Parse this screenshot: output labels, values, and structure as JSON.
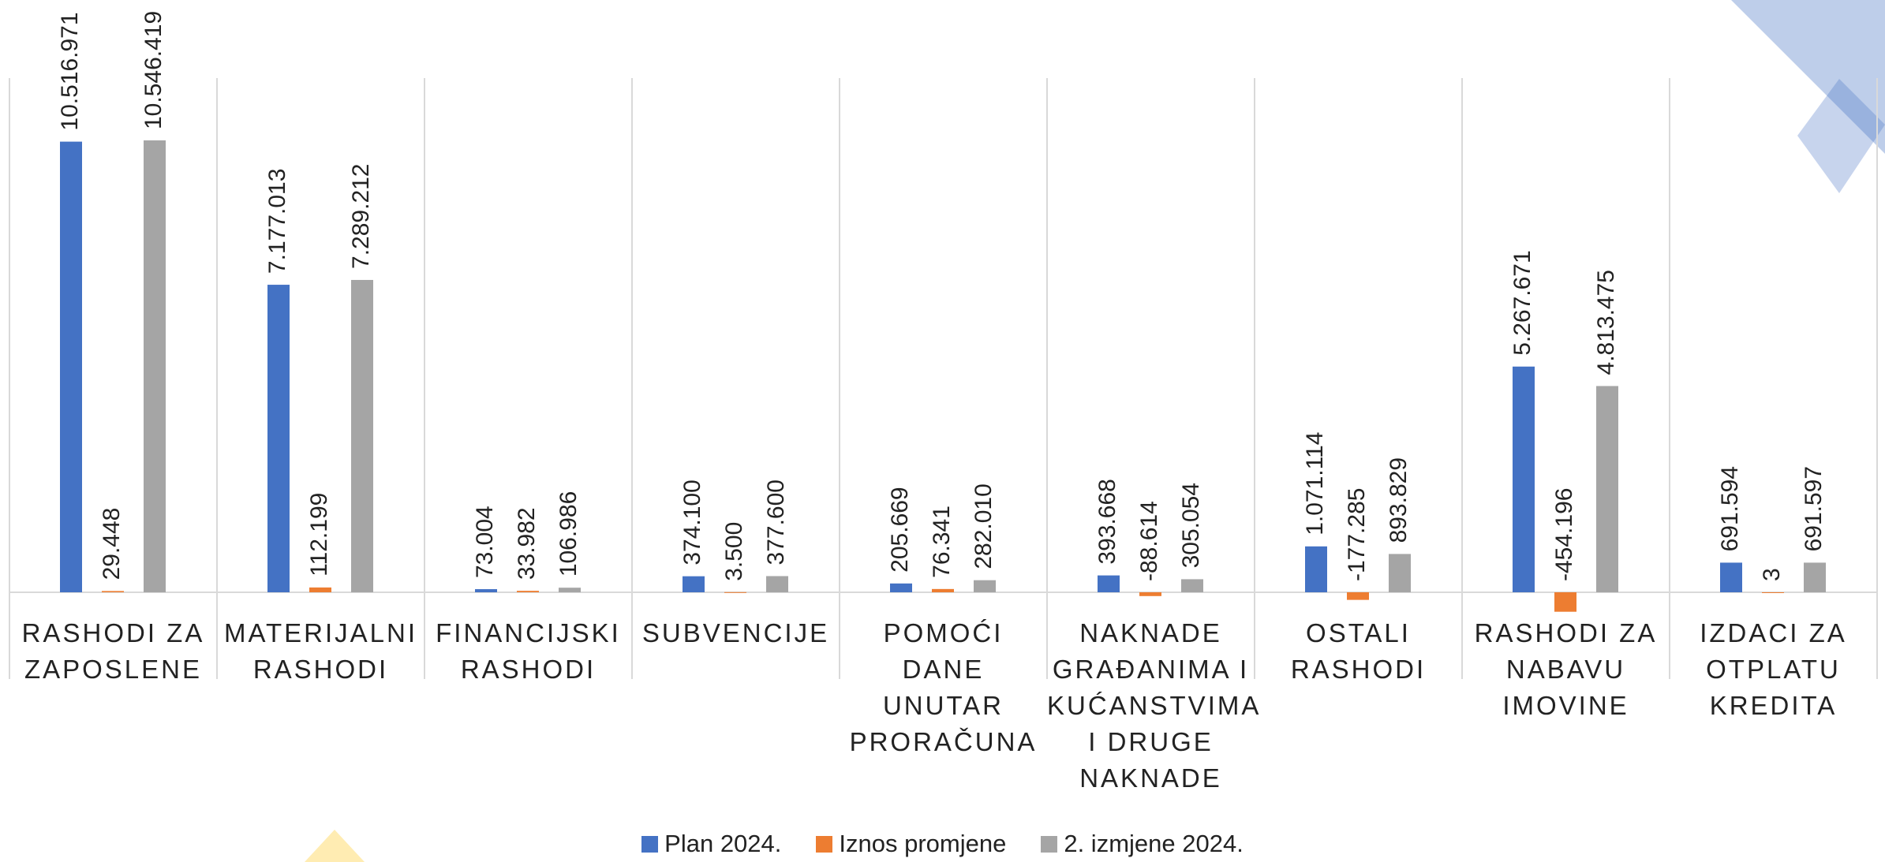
{
  "chart_data": {
    "type": "bar",
    "categories": [
      "RASHODI ZA ZAPOSLENE",
      "MATERIJALNI RASHODI",
      "FINANCIJSKI RASHODI",
      "SUBVENCIJE",
      "POMOĆI DANE UNUTAR PRORAČUNA",
      "NAKNADE GRAĐANIMA I KUĆANSTVIMA I DRUGE NAKNADE",
      "OSTALI RASHODI",
      "RASHODI ZA NABAVU IMOVINE",
      "IZDACI ZA OTPLATU KREDITA"
    ],
    "series": [
      {
        "name": "Plan 2024.",
        "color": "#4472c4",
        "values": [
          10516971,
          7177013,
          73004,
          374100,
          205669,
          393668,
          1071114,
          5267671,
          691594
        ],
        "value_labels": [
          "10.516.971",
          "7.177.013",
          "73.004",
          "374.100",
          "205.669",
          "393.668",
          "1.071.114",
          "5.267.671",
          "691.594"
        ]
      },
      {
        "name": "Iznos promjene",
        "color": "#ed7d31",
        "values": [
          29448,
          112199,
          33982,
          3500,
          76341,
          -88614,
          -177285,
          -454196,
          3
        ],
        "value_labels": [
          "29.448",
          "112.199",
          "33.982",
          "3.500",
          "76.341",
          "-88.614",
          "-177.285",
          "-454.196",
          "3"
        ]
      },
      {
        "name": "2. izmjene 2024.",
        "color": "#a5a5a5",
        "values": [
          10546419,
          7289212,
          106986,
          377600,
          282010,
          305054,
          893829,
          4813475,
          691597
        ],
        "value_labels": [
          "10.546.419",
          "7.289.212",
          "106.986",
          "377.600",
          "282.010",
          "305.054",
          "893.829",
          "4.813.475",
          "691.597"
        ]
      }
    ],
    "legend": "bottom"
  }
}
